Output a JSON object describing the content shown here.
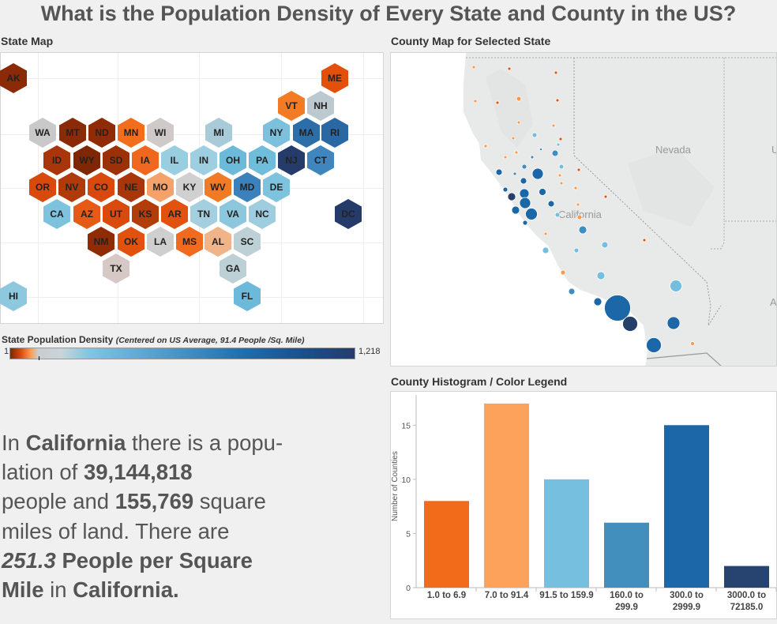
{
  "title": "What is the Population Density of Every State and County in the US?",
  "state_map": {
    "label": "State Map",
    "states": [
      {
        "abbr": "AK",
        "color": "#8a2a07"
      },
      {
        "abbr": "ME",
        "color": "#e2500c"
      },
      {
        "abbr": "VT",
        "color": "#f47b25"
      },
      {
        "abbr": "NH",
        "color": "#bccad0"
      },
      {
        "abbr": "WA",
        "color": "#c9c9c9"
      },
      {
        "abbr": "MT",
        "color": "#8a2a07"
      },
      {
        "abbr": "ND",
        "color": "#8f2c07"
      },
      {
        "abbr": "MN",
        "color": "#f26d1c"
      },
      {
        "abbr": "WI",
        "color": "#cfcac7"
      },
      {
        "abbr": "MI",
        "color": "#a9cbd8"
      },
      {
        "abbr": "NY",
        "color": "#7cc0dc"
      },
      {
        "abbr": "MA",
        "color": "#2c6ea8"
      },
      {
        "abbr": "RI",
        "color": "#2a68a4"
      },
      {
        "abbr": "ID",
        "color": "#a9360a"
      },
      {
        "abbr": "WY",
        "color": "#7f2704"
      },
      {
        "abbr": "SD",
        "color": "#9c3107"
      },
      {
        "abbr": "IA",
        "color": "#f0681f"
      },
      {
        "abbr": "IL",
        "color": "#99cde0"
      },
      {
        "abbr": "IN",
        "color": "#9dcfe0"
      },
      {
        "abbr": "OH",
        "color": "#6cbad9"
      },
      {
        "abbr": "PA",
        "color": "#70bcdb"
      },
      {
        "abbr": "NJ",
        "color": "#253c6b"
      },
      {
        "abbr": "CT",
        "color": "#3f86bf"
      },
      {
        "abbr": "OR",
        "color": "#d84a0c"
      },
      {
        "abbr": "NV",
        "color": "#b13a0a"
      },
      {
        "abbr": "CO",
        "color": "#d9480c"
      },
      {
        "abbr": "NE",
        "color": "#a8360a"
      },
      {
        "abbr": "MO",
        "color": "#f5a26a"
      },
      {
        "abbr": "KY",
        "color": "#d0d0d0"
      },
      {
        "abbr": "WV",
        "color": "#f27a25"
      },
      {
        "abbr": "MD",
        "color": "#3b82bc"
      },
      {
        "abbr": "DE",
        "color": "#7ec3dd"
      },
      {
        "abbr": "CA",
        "color": "#7ec3dd"
      },
      {
        "abbr": "AZ",
        "color": "#e55a14"
      },
      {
        "abbr": "UT",
        "color": "#d94a0c"
      },
      {
        "abbr": "KS",
        "color": "#b23c0a"
      },
      {
        "abbr": "AR",
        "color": "#e0520e"
      },
      {
        "abbr": "TN",
        "color": "#a4cfdf"
      },
      {
        "abbr": "VA",
        "color": "#8cc7de"
      },
      {
        "abbr": "NC",
        "color": "#9ecde0"
      },
      {
        "abbr": "DC",
        "color": "#253c6b"
      },
      {
        "abbr": "NM",
        "color": "#8f2c06"
      },
      {
        "abbr": "OK",
        "color": "#e0520e"
      },
      {
        "abbr": "LA",
        "color": "#cfcfcf"
      },
      {
        "abbr": "MS",
        "color": "#f06a20"
      },
      {
        "abbr": "AL",
        "color": "#f0b48a"
      },
      {
        "abbr": "SC",
        "color": "#bcd0d6"
      },
      {
        "abbr": "TX",
        "color": "#d6c8c4"
      },
      {
        "abbr": "GA",
        "color": "#bcd0d6"
      },
      {
        "abbr": "HI",
        "color": "#8ec8de"
      },
      {
        "abbr": "FL",
        "color": "#6db9da"
      }
    ]
  },
  "legend": {
    "title": "State Population Density",
    "subtitle": "(Centered on US Average, 91.4 People /Sq. Mile)",
    "min": "1",
    "max": "1,218"
  },
  "county_map": {
    "label": "County Map for Selected State",
    "labels": {
      "nevada": "Nevada",
      "california": "California",
      "utah_partial": "U",
      "arizona_partial": "A"
    }
  },
  "histogram": {
    "label": "County Histogram / Color Legend",
    "chart_data": {
      "type": "bar",
      "categories": [
        [
          "1.0 to 6.9"
        ],
        [
          "7.0 to 91.4"
        ],
        [
          "91.5 to 159.9"
        ],
        [
          "160.0 to",
          "299.9"
        ],
        [
          "300.0 to",
          "2999.9"
        ],
        [
          "3000.0 to",
          "72185.0"
        ]
      ],
      "values": [
        8,
        17,
        10,
        6,
        15,
        2
      ],
      "colors": [
        "#f26b1a",
        "#fda25a",
        "#76bfdf",
        "#428ebd",
        "#1c67a7",
        "#26446f"
      ],
      "ylabel": "Number of Counties",
      "yticks": [
        0,
        5,
        10,
        15
      ],
      "ylim": [
        0,
        17.5
      ],
      "grid": false
    }
  },
  "summary": {
    "p1": "In ",
    "state1": "California",
    "p2": " there is a popu-",
    "p3": "lation of ",
    "population": "39,144,818",
    "p4": "people and ",
    "area": "155,769",
    "p5": " square",
    "p6": "miles of land. There are",
    "density": "251.3",
    "p7": " People per Square",
    "p8": "Mile",
    "p9": " in ",
    "state2": "California",
    "p10": "."
  }
}
